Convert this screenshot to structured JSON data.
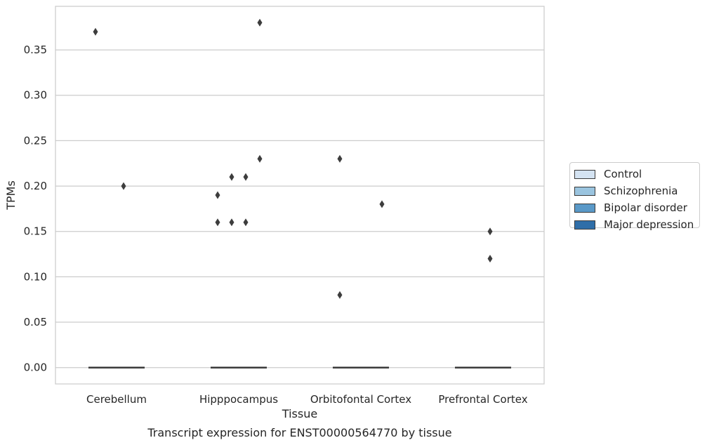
{
  "chart_data": {
    "type": "box",
    "title": "Transcript expression for ENST00000564770 by tissue",
    "xlabel": "Tissue",
    "ylabel": "TPMs",
    "ylim": [
      -0.018,
      0.398
    ],
    "yticks": [
      0.0,
      0.05,
      0.1,
      0.15,
      0.2,
      0.25,
      0.3,
      0.35
    ],
    "ytick_labels": [
      "0.00",
      "0.05",
      "0.10",
      "0.15",
      "0.20",
      "0.25",
      "0.30",
      "0.35"
    ],
    "grid": "horizontal",
    "legend_position": "right",
    "categories": [
      "Cerebellum",
      "Hipppocampus",
      "Orbitofontal Cortex",
      "Prefrontal Cortex"
    ],
    "series": [
      {
        "name": "Control",
        "color": "#d4e3f2"
      },
      {
        "name": "Schizophrenia",
        "color": "#9ac4df"
      },
      {
        "name": "Bipolar disorder",
        "color": "#5a99c8"
      },
      {
        "name": "Major depression",
        "color": "#2f6ea8"
      }
    ],
    "box_median": 0.0,
    "outliers": [
      {
        "category": "Cerebellum",
        "series": "Control",
        "values": [
          0.37
        ]
      },
      {
        "category": "Cerebellum",
        "series": "Bipolar disorder",
        "values": [
          0.2
        ]
      },
      {
        "category": "Hipppocampus",
        "series": "Control",
        "values": [
          0.19,
          0.16
        ]
      },
      {
        "category": "Hipppocampus",
        "series": "Schizophrenia",
        "values": [
          0.21,
          0.16
        ]
      },
      {
        "category": "Hipppocampus",
        "series": "Bipolar disorder",
        "values": [
          0.21,
          0.16
        ]
      },
      {
        "category": "Hipppocampus",
        "series": "Major depression",
        "values": [
          0.38,
          0.23
        ]
      },
      {
        "category": "Orbitofontal Cortex",
        "series": "Control",
        "values": [
          0.23,
          0.08
        ]
      },
      {
        "category": "Orbitofontal Cortex",
        "series": "Major depression",
        "values": [
          0.18
        ]
      },
      {
        "category": "Prefrontal Cortex",
        "series": "Bipolar disorder",
        "values": [
          0.15,
          0.12
        ]
      }
    ]
  }
}
